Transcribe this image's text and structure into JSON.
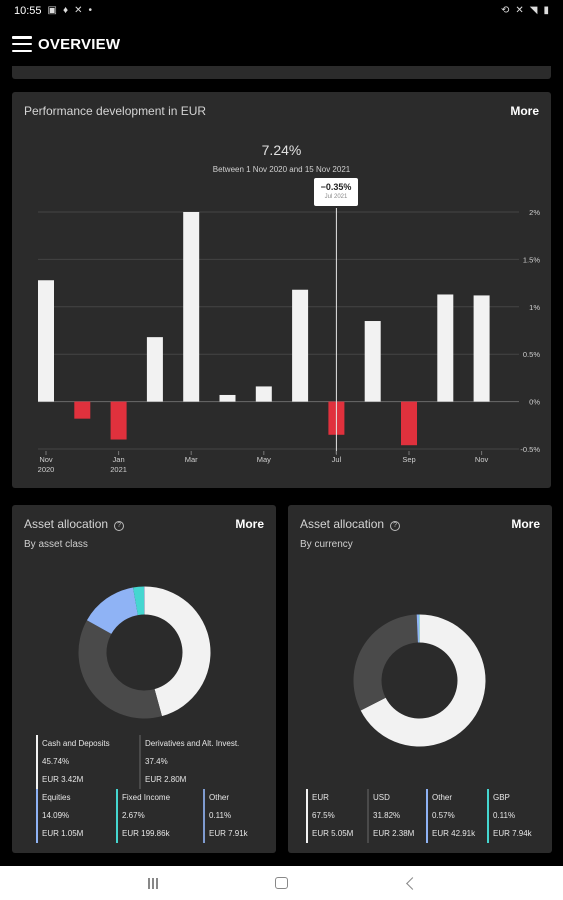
{
  "status_bar": {
    "time": "10:55",
    "left_icons": [
      "image-icon",
      "pin-icon",
      "tools-icon",
      "dot-icon"
    ],
    "right_icons": [
      "rotate-icon",
      "mute-icon",
      "wifi-icon",
      "battery-icon"
    ]
  },
  "header": {
    "title": "OVERVIEW"
  },
  "performance": {
    "title": "Performance development in EUR",
    "more_label": "More",
    "value": "7.24%",
    "range": "Between 1 Nov 2020 and 15 Nov 2021",
    "tooltip": {
      "value": "−0.35%",
      "date": "Jul 2021"
    },
    "chart_data": {
      "type": "bar",
      "categories": [
        "Nov 2020",
        "Dec 2020",
        "Jan 2021",
        "Feb 2021",
        "Mar 2021",
        "Apr 2021",
        "May 2021",
        "Jun 2021",
        "Jul 2021",
        "Aug 2021",
        "Sep 2021",
        "Oct 2021",
        "Nov 2021"
      ],
      "values": [
        1.28,
        -0.18,
        -0.4,
        0.68,
        2.0,
        0.07,
        0.16,
        1.18,
        -0.35,
        0.85,
        -0.46,
        1.13,
        1.12
      ],
      "y_ticks": [
        "2%",
        "1.5%",
        "1%",
        "0.5%",
        "0%",
        "-0.5%"
      ],
      "y_tick_values": [
        2,
        1.5,
        1,
        0.5,
        0,
        -0.5
      ],
      "x_ticks": [
        {
          "index": 0,
          "line1": "Nov",
          "line2": "2020"
        },
        {
          "index": 2,
          "line1": "Jan",
          "line2": "2021"
        },
        {
          "index": 4,
          "line1": "Mar",
          "line2": ""
        },
        {
          "index": 6,
          "line1": "May",
          "line2": ""
        },
        {
          "index": 8,
          "line1": "Jul",
          "line2": ""
        },
        {
          "index": 10,
          "line1": "Sep",
          "line2": ""
        },
        {
          "index": 12,
          "line1": "Nov",
          "line2": ""
        }
      ],
      "ylim": [
        -0.5,
        2.0
      ],
      "highlight_index": 8,
      "positive_color": "#f2f2f2",
      "negative_color": "#e0313d",
      "grid": true
    }
  },
  "allocation_class": {
    "title": "Asset allocation",
    "subtitle": "By asset class",
    "more_label": "More",
    "slices": [
      {
        "name": "Cash and Deposits",
        "pct": "45.74%",
        "amount": "EUR 3.42M",
        "value": 45.74,
        "color": "#f2f2f2"
      },
      {
        "name": "Derivatives and Alt. Invest.",
        "pct": "37.4%",
        "amount": "EUR 2.80M",
        "value": 37.4,
        "color": "#4a4a4a"
      },
      {
        "name": "Equities",
        "pct": "14.09%",
        "amount": "EUR 1.05M",
        "value": 14.09,
        "color": "#8fb3f5"
      },
      {
        "name": "Fixed Income",
        "pct": "2.67%",
        "amount": "EUR 199.86k",
        "value": 2.67,
        "color": "#45d6d0"
      },
      {
        "name": "Other",
        "pct": "0.11%",
        "amount": "EUR 7.91k",
        "value": 0.11,
        "color": "#7f9bd0"
      }
    ]
  },
  "allocation_currency": {
    "title": "Asset allocation",
    "subtitle": "By currency",
    "more_label": "More",
    "slices": [
      {
        "name": "EUR",
        "pct": "67.5%",
        "amount": "EUR 5.05M",
        "value": 67.5,
        "color": "#f2f2f2"
      },
      {
        "name": "USD",
        "pct": "31.82%",
        "amount": "EUR 2.38M",
        "value": 31.82,
        "color": "#4a4a4a"
      },
      {
        "name": "Other",
        "pct": "0.57%",
        "amount": "EUR 42.91k",
        "value": 0.57,
        "color": "#8fb3f5"
      },
      {
        "name": "GBP",
        "pct": "0.11%",
        "amount": "EUR 7.94k",
        "value": 0.11,
        "color": "#45d6d0"
      }
    ]
  },
  "nav_bar": {
    "icons": [
      "recents-icon",
      "home-icon",
      "back-icon"
    ]
  }
}
